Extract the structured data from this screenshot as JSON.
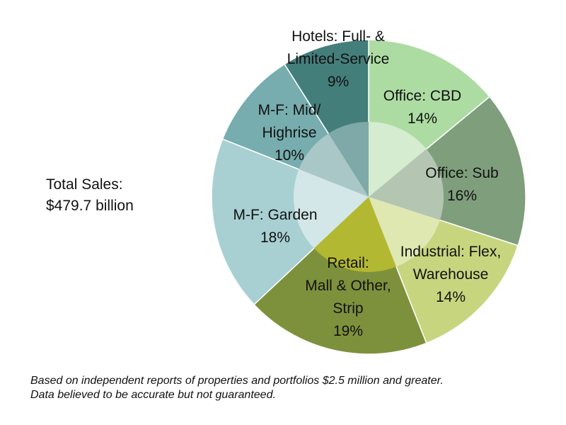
{
  "total": {
    "line1": "Total Sales:",
    "line2": "$479.7 billion"
  },
  "footnote": {
    "line1": "Based on independent reports of properties and portfolios $2.5 million and greater.",
    "line2": "Data believed to be accurate but not guaranteed."
  },
  "chart_data": {
    "type": "pie",
    "start_angle_deg": 0,
    "direction": "clockwise",
    "inner_highlight": true,
    "slices": [
      {
        "label": [
          "Office: CBD",
          "14%"
        ],
        "value": 14,
        "color": "#addca3",
        "inner": "#d5ecd0"
      },
      {
        "label": [
          "Office: Sub",
          "16%"
        ],
        "value": 16,
        "color": "#7f9e7c",
        "inner": "#b4c6b1"
      },
      {
        "label": [
          "Industrial: Flex,",
          "Warehouse",
          "14%"
        ],
        "value": 14,
        "color": "#c8d57f",
        "inner": "#dfe8b0"
      },
      {
        "label": [
          "Retail:",
          "Mall & Other,",
          "Strip",
          "19%"
        ],
        "value": 19,
        "color": "#7d913c",
        "inner": "#b3b832"
      },
      {
        "label": [
          "M-F: Garden",
          "18%"
        ],
        "value": 18,
        "color": "#a8d0d2",
        "inner": "#d3e7e8"
      },
      {
        "label": [
          "M-F: Mid/",
          "Highrise",
          "10%"
        ],
        "value": 10,
        "color": "#77adae",
        "inner": "#aac7c8"
      },
      {
        "label": [
          "Hotels: Full- &",
          "Limited-Service",
          "9%"
        ],
        "value": 9,
        "color": "#447e7b",
        "inner": "#7fa9a8"
      }
    ]
  }
}
